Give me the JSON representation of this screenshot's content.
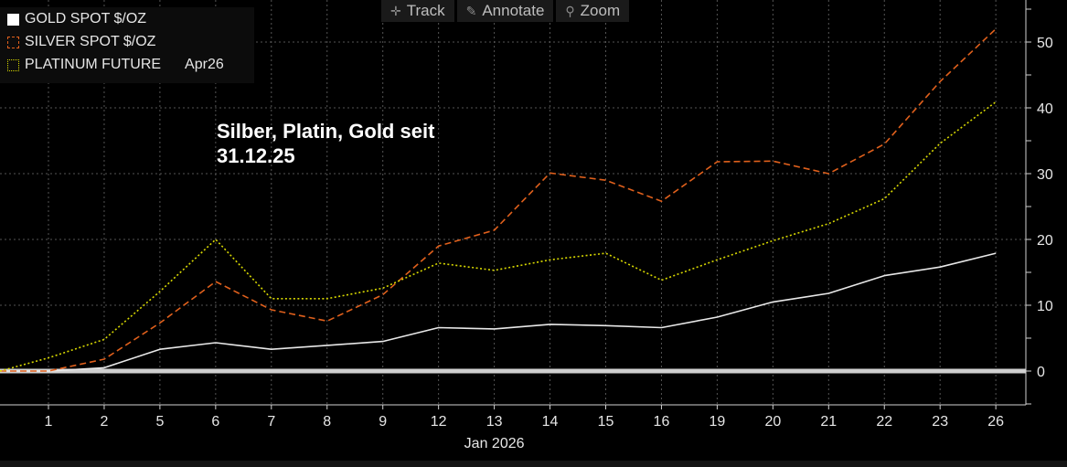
{
  "toolbar": {
    "track_label": "Track",
    "annotate_label": "Annotate",
    "zoom_label": "Zoom"
  },
  "legend": {
    "gold_label": "GOLD SPOT $/OZ",
    "silver_label": "SILVER SPOT $/OZ",
    "platinum_label": "PLATINUM FUTURE",
    "platinum_contract": "Apr26"
  },
  "annotation": {
    "line1": "Silber, Platin, Gold seit",
    "line2": "31.12.25"
  },
  "colors": {
    "gold": "#e8e8e8",
    "silver": "#e0601c",
    "platinum": "#d8d800",
    "zero_line": "#cfcfcf",
    "grid": "#555555",
    "axis_text": "#e6e6e6"
  },
  "chart_data": {
    "type": "line",
    "title": "",
    "xlabel": "Jan 2026",
    "ylabel": "",
    "categories": [
      "1",
      "2",
      "5",
      "6",
      "7",
      "8",
      "9",
      "12",
      "13",
      "14",
      "15",
      "16",
      "19",
      "20",
      "21",
      "22",
      "23",
      "26"
    ],
    "y_axis_side": "right",
    "y_ticks": [
      0,
      10,
      20,
      30,
      40,
      50
    ],
    "ylim": [
      -5,
      56
    ],
    "grid": true,
    "legend_position": "top-left",
    "series": [
      {
        "name": "GOLD SPOT $/OZ",
        "style": "solid",
        "values": [
          0,
          0.5,
          3.3,
          4.3,
          3.3,
          3.9,
          4.5,
          6.6,
          6.4,
          7.1,
          6.9,
          6.6,
          8.2,
          10.5,
          11.8,
          14.5,
          15.8,
          17.9
        ]
      },
      {
        "name": "SILVER SPOT $/OZ",
        "style": "dashed",
        "values": [
          0,
          1.8,
          7.3,
          13.6,
          9.3,
          7.6,
          11.6,
          19.0,
          21.4,
          30.1,
          29.0,
          25.8,
          31.8,
          31.9,
          30.0,
          34.5,
          44.0,
          52.0
        ]
      },
      {
        "name": "PLATINUM FUTURE Apr26",
        "style": "dotted",
        "values": [
          2.0,
          4.8,
          12.1,
          20.0,
          11.0,
          11.0,
          12.6,
          16.4,
          15.3,
          16.9,
          17.9,
          13.8,
          16.9,
          19.8,
          22.4,
          26.2,
          34.6,
          40.9
        ]
      }
    ]
  }
}
